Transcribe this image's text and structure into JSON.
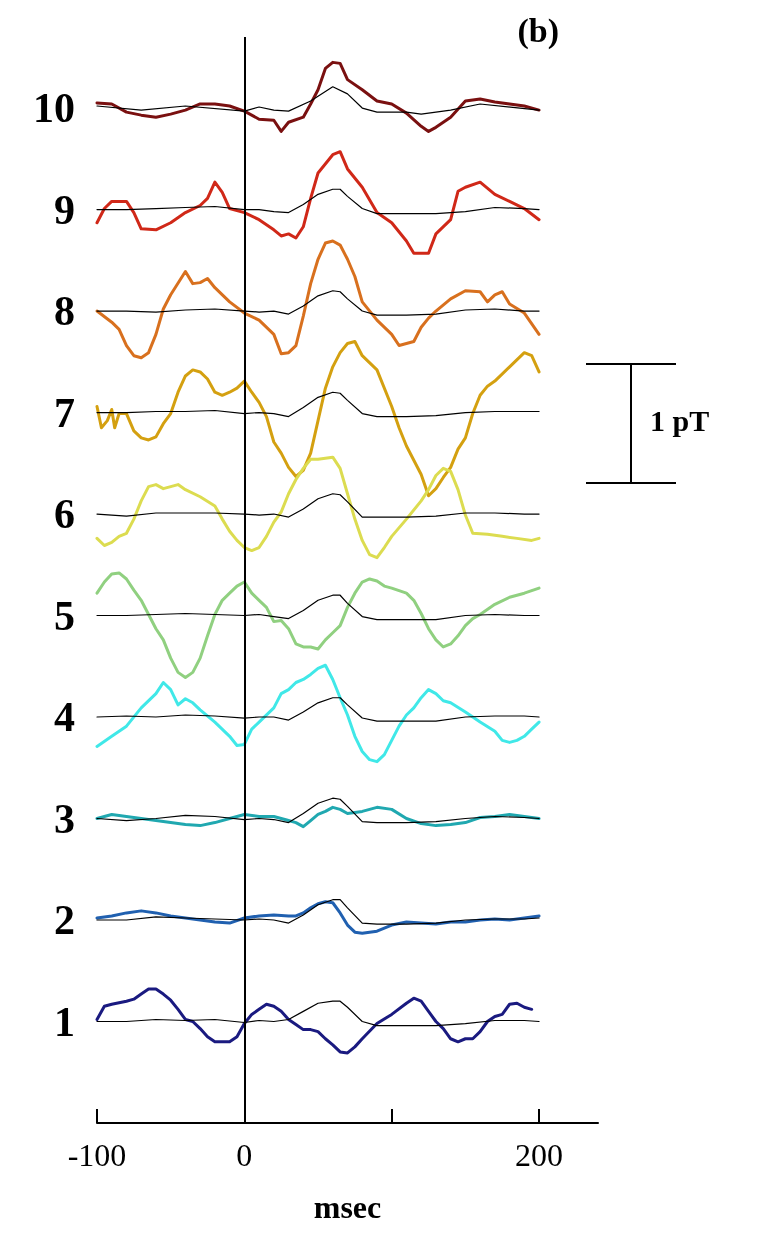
{
  "chart_data": {
    "type": "line",
    "title": "(b)",
    "xlabel": "msec",
    "xlim": [
      -100,
      240
    ],
    "xticks": [
      -100,
      0,
      {
        "value": 100,
        "label": null
      },
      200
    ],
    "ylim": [
      0,
      10.7
    ],
    "yticks": [
      1,
      2,
      3,
      4,
      5,
      6,
      7,
      8,
      9,
      10
    ],
    "marker": "none",
    "line_style": "solid",
    "ref_lines": [
      {
        "axis": "x",
        "value": 0,
        "color": "#000000"
      }
    ],
    "annotations": [
      "1 pT"
    ],
    "series": [
      {
        "color": "#7a1010",
        "x": [
          -100,
          -90,
          -80,
          -70,
          -60,
          -50,
          -40,
          -30,
          -20,
          -10,
          0,
          10,
          20,
          25,
          30,
          40,
          45,
          50,
          55,
          60,
          65,
          70,
          80,
          90,
          100,
          110,
          120,
          125,
          130,
          140,
          150,
          160,
          170,
          180,
          190,
          200
        ],
        "values": [
          10.05,
          10.04,
          9.96,
          9.93,
          9.91,
          9.94,
          9.98,
          10.04,
          10.04,
          10.02,
          9.97,
          9.89,
          9.88,
          9.77,
          9.86,
          9.91,
          10.04,
          10.18,
          10.39,
          10.45,
          10.44,
          10.28,
          10.18,
          10.07,
          10.04,
          9.95,
          9.82,
          9.77,
          9.81,
          9.91,
          10.07,
          10.09,
          10.06,
          10.04,
          10.02,
          9.98
        ]
      },
      {
        "color": "#000000",
        "x": [
          -100,
          -70,
          -40,
          0,
          10,
          20,
          30,
          45,
          60,
          70,
          80,
          90,
          110,
          120,
          140,
          160,
          200
        ],
        "values": [
          10.02,
          9.98,
          10.02,
          9.97,
          10.01,
          9.98,
          9.97,
          10.07,
          10.21,
          10.14,
          10.0,
          9.96,
          9.96,
          9.94,
          9.98,
          10.04,
          9.98
        ]
      },
      {
        "color": "#d02818",
        "x": [
          -100,
          -95,
          -90,
          -80,
          -75,
          -70,
          -60,
          -50,
          -40,
          -30,
          -25,
          -20,
          -15,
          -10,
          0,
          10,
          20,
          25,
          30,
          35,
          40,
          45,
          50,
          60,
          65,
          70,
          80,
          90,
          100,
          110,
          115,
          125,
          130,
          140,
          145,
          150,
          160,
          170,
          180,
          190,
          200
        ],
        "values": [
          8.87,
          9.01,
          9.08,
          9.08,
          8.97,
          8.81,
          8.8,
          8.87,
          8.97,
          9.04,
          9.11,
          9.27,
          9.17,
          9.01,
          8.97,
          8.9,
          8.8,
          8.74,
          8.76,
          8.72,
          8.83,
          9.11,
          9.36,
          9.54,
          9.57,
          9.4,
          9.22,
          8.97,
          8.87,
          8.69,
          8.57,
          8.57,
          8.76,
          8.9,
          9.18,
          9.22,
          9.27,
          9.15,
          9.08,
          9.01,
          8.9
        ]
      },
      {
        "color": "#000000",
        "x": [
          -100,
          -80,
          -60,
          -40,
          -20,
          0,
          10,
          20,
          30,
          40,
          50,
          60,
          65,
          70,
          80,
          90,
          110,
          130,
          150,
          170,
          190,
          200
        ],
        "values": [
          9.0,
          9.0,
          9.01,
          9.02,
          9.03,
          9.0,
          9.0,
          8.98,
          8.97,
          9.05,
          9.15,
          9.2,
          9.2,
          9.13,
          9.01,
          8.96,
          8.96,
          8.96,
          8.98,
          9.02,
          9.01,
          9.0
        ]
      },
      {
        "color": "#d8701e",
        "x": [
          -100,
          -90,
          -85,
          -80,
          -75,
          -70,
          -65,
          -60,
          -55,
          -50,
          -40,
          -35,
          -30,
          -25,
          -20,
          -10,
          0,
          10,
          20,
          25,
          30,
          35,
          40,
          45,
          50,
          55,
          60,
          65,
          70,
          75,
          80,
          90,
          100,
          105,
          110,
          115,
          120,
          125,
          130,
          140,
          150,
          160,
          165,
          170,
          175,
          180,
          190,
          200
        ],
        "values": [
          8.0,
          7.89,
          7.82,
          7.66,
          7.56,
          7.54,
          7.59,
          7.77,
          8.02,
          8.16,
          8.39,
          8.27,
          8.28,
          8.32,
          8.23,
          8.09,
          7.98,
          7.91,
          7.77,
          7.58,
          7.59,
          7.66,
          7.95,
          8.27,
          8.51,
          8.67,
          8.69,
          8.65,
          8.51,
          8.34,
          8.09,
          7.91,
          7.77,
          7.66,
          7.68,
          7.7,
          7.84,
          7.93,
          8.0,
          8.12,
          8.2,
          8.19,
          8.09,
          8.16,
          8.19,
          8.07,
          7.98,
          7.77
        ]
      },
      {
        "color": "#000000",
        "x": [
          -100,
          -80,
          -60,
          -40,
          -20,
          0,
          10,
          20,
          30,
          40,
          50,
          60,
          65,
          70,
          80,
          90,
          110,
          130,
          150,
          170,
          190,
          200
        ],
        "values": [
          8.0,
          8.0,
          7.99,
          8.01,
          8.02,
          8.0,
          7.99,
          8.0,
          7.97,
          8.05,
          8.15,
          8.2,
          8.19,
          8.12,
          8.0,
          7.96,
          7.96,
          7.97,
          8.01,
          8.02,
          8.0,
          8.0
        ]
      },
      {
        "color": "#d4a010",
        "x": [
          -100,
          -97,
          -93,
          -90,
          -88,
          -85,
          -80,
          -75,
          -70,
          -65,
          -60,
          -55,
          -50,
          -45,
          -40,
          -35,
          -30,
          -25,
          -20,
          -15,
          -10,
          -5,
          0,
          5,
          10,
          15,
          20,
          25,
          30,
          35,
          40,
          45,
          50,
          55,
          60,
          65,
          70,
          75,
          80,
          90,
          100,
          105,
          110,
          120,
          125,
          130,
          135,
          140,
          145,
          150,
          155,
          160,
          165,
          170,
          180,
          190,
          195,
          200
        ],
        "values": [
          7.06,
          6.85,
          6.92,
          7.03,
          6.85,
          6.99,
          6.99,
          6.82,
          6.75,
          6.73,
          6.76,
          6.89,
          6.99,
          7.2,
          7.36,
          7.42,
          7.4,
          7.33,
          7.2,
          7.17,
          7.2,
          7.24,
          7.31,
          7.2,
          7.1,
          6.96,
          6.71,
          6.6,
          6.46,
          6.37,
          6.43,
          6.6,
          6.92,
          7.24,
          7.45,
          7.59,
          7.68,
          7.7,
          7.56,
          7.42,
          7.06,
          6.85,
          6.67,
          6.39,
          6.18,
          6.25,
          6.36,
          6.46,
          6.64,
          6.75,
          6.99,
          7.17,
          7.26,
          7.31,
          7.45,
          7.59,
          7.56,
          7.4
        ]
      },
      {
        "color": "#000000",
        "x": [
          -100,
          -80,
          -60,
          -40,
          -20,
          0,
          10,
          20,
          30,
          40,
          50,
          60,
          65,
          70,
          80,
          90,
          110,
          130,
          150,
          170,
          190,
          200
        ],
        "values": [
          7.0,
          7.0,
          7.01,
          7.01,
          7.02,
          6.99,
          7.0,
          6.99,
          6.96,
          7.05,
          7.15,
          7.2,
          7.19,
          7.12,
          6.99,
          6.96,
          6.96,
          6.97,
          7.0,
          7.01,
          7.01,
          7.01
        ]
      },
      {
        "color": "#dcdc50",
        "x": [
          -100,
          -95,
          -90,
          -85,
          -80,
          -75,
          -70,
          -65,
          -60,
          -55,
          -50,
          -45,
          -40,
          -30,
          -20,
          -15,
          -10,
          -5,
          0,
          5,
          10,
          15,
          20,
          25,
          30,
          35,
          40,
          45,
          50,
          55,
          60,
          65,
          70,
          75,
          80,
          85,
          90,
          95,
          100,
          110,
          120,
          125,
          130,
          135,
          140,
          145,
          150,
          155,
          165,
          175,
          185,
          195,
          200
        ],
        "values": [
          5.76,
          5.69,
          5.72,
          5.78,
          5.81,
          5.95,
          6.13,
          6.27,
          6.29,
          6.25,
          6.27,
          6.29,
          6.24,
          6.17,
          6.08,
          5.95,
          5.83,
          5.74,
          5.67,
          5.64,
          5.67,
          5.78,
          5.92,
          6.02,
          6.2,
          6.34,
          6.45,
          6.54,
          6.54,
          6.55,
          6.56,
          6.45,
          6.2,
          5.95,
          5.74,
          5.6,
          5.57,
          5.67,
          5.78,
          5.95,
          6.13,
          6.24,
          6.38,
          6.45,
          6.42,
          6.24,
          5.99,
          5.81,
          5.8,
          5.78,
          5.76,
          5.74,
          5.76
        ]
      },
      {
        "color": "#000000",
        "x": [
          -100,
          -80,
          -60,
          -40,
          -20,
          0,
          10,
          20,
          30,
          40,
          50,
          60,
          65,
          70,
          80,
          90,
          110,
          130,
          150,
          170,
          190,
          200
        ],
        "values": [
          6.0,
          5.98,
          6.01,
          6.01,
          6.01,
          6.0,
          5.99,
          6.0,
          5.97,
          6.05,
          6.15,
          6.2,
          6.19,
          6.12,
          5.97,
          5.97,
          5.97,
          5.98,
          6.01,
          6.01,
          6.0,
          6.0
        ]
      },
      {
        "color": "#90d080",
        "x": [
          -100,
          -95,
          -90,
          -85,
          -80,
          -75,
          -70,
          -65,
          -60,
          -55,
          -50,
          -45,
          -40,
          -35,
          -30,
          -25,
          -20,
          -15,
          -10,
          -5,
          0,
          5,
          10,
          15,
          20,
          25,
          30,
          35,
          40,
          45,
          50,
          55,
          60,
          65,
          70,
          75,
          80,
          85,
          90,
          95,
          100,
          110,
          115,
          120,
          125,
          130,
          135,
          140,
          145,
          150,
          155,
          160,
          170,
          180,
          190,
          200
        ],
        "values": [
          5.22,
          5.33,
          5.41,
          5.42,
          5.36,
          5.25,
          5.15,
          5.01,
          4.87,
          4.76,
          4.58,
          4.44,
          4.39,
          4.44,
          4.58,
          4.8,
          5.01,
          5.15,
          5.22,
          5.29,
          5.33,
          5.22,
          5.15,
          5.08,
          4.94,
          4.95,
          4.87,
          4.72,
          4.69,
          4.69,
          4.67,
          4.76,
          4.83,
          4.9,
          5.08,
          5.22,
          5.33,
          5.36,
          5.34,
          5.29,
          5.27,
          5.22,
          5.15,
          5.02,
          4.87,
          4.76,
          4.69,
          4.72,
          4.8,
          4.9,
          4.97,
          5.01,
          5.11,
          5.18,
          5.22,
          5.27
        ]
      },
      {
        "color": "#000000",
        "x": [
          -100,
          -80,
          -60,
          -40,
          -20,
          0,
          10,
          20,
          30,
          40,
          50,
          60,
          65,
          70,
          80,
          90,
          110,
          130,
          150,
          170,
          190,
          200
        ],
        "values": [
          5.0,
          5.0,
          5.01,
          5.02,
          5.01,
          5.0,
          5.01,
          4.99,
          4.97,
          5.05,
          5.15,
          5.2,
          5.2,
          5.12,
          4.99,
          4.96,
          4.96,
          4.96,
          5.0,
          5.01,
          5.0,
          5.0
        ]
      },
      {
        "color": "#40e8e8",
        "x": [
          -100,
          -90,
          -80,
          -70,
          -60,
          -55,
          -50,
          -45,
          -40,
          -35,
          -30,
          -20,
          -10,
          -5,
          0,
          5,
          10,
          20,
          25,
          30,
          35,
          40,
          45,
          50,
          55,
          60,
          65,
          70,
          75,
          80,
          85,
          90,
          95,
          100,
          105,
          110,
          115,
          120,
          125,
          130,
          135,
          140,
          150,
          160,
          170,
          175,
          180,
          185,
          190,
          195,
          200
        ],
        "values": [
          3.71,
          3.81,
          3.91,
          4.09,
          4.23,
          4.34,
          4.27,
          4.12,
          4.18,
          4.14,
          4.07,
          3.95,
          3.81,
          3.72,
          3.73,
          3.88,
          3.95,
          4.09,
          4.23,
          4.27,
          4.34,
          4.37,
          4.42,
          4.48,
          4.51,
          4.37,
          4.19,
          4.02,
          3.81,
          3.66,
          3.58,
          3.56,
          3.63,
          3.77,
          3.91,
          4.02,
          4.09,
          4.19,
          4.27,
          4.23,
          4.16,
          4.14,
          4.05,
          3.95,
          3.86,
          3.77,
          3.75,
          3.77,
          3.81,
          3.88,
          3.95
        ]
      },
      {
        "color": "#000000",
        "x": [
          -100,
          -80,
          -60,
          -40,
          -20,
          0,
          10,
          20,
          30,
          40,
          50,
          60,
          65,
          70,
          80,
          90,
          110,
          130,
          150,
          170,
          190,
          200
        ],
        "values": [
          4.0,
          4.01,
          4.0,
          4.02,
          4.01,
          3.99,
          4.0,
          4.0,
          3.97,
          4.05,
          4.14,
          4.19,
          4.19,
          4.12,
          3.99,
          3.96,
          3.96,
          3.96,
          4.0,
          4.01,
          4.01,
          4.0
        ]
      },
      {
        "color": "#20a8b0",
        "x": [
          -100,
          -90,
          -80,
          -70,
          -60,
          -50,
          -40,
          -30,
          -20,
          -10,
          0,
          10,
          20,
          30,
          35,
          40,
          45,
          50,
          55,
          60,
          65,
          70,
          80,
          90,
          100,
          110,
          120,
          130,
          140,
          150,
          160,
          170,
          180,
          190,
          200
        ],
        "values": [
          3.0,
          3.04,
          3.02,
          3.0,
          2.98,
          2.96,
          2.94,
          2.93,
          2.96,
          3.0,
          3.04,
          3.02,
          3.02,
          2.98,
          2.96,
          2.92,
          2.98,
          3.04,
          3.07,
          3.11,
          3.09,
          3.05,
          3.07,
          3.11,
          3.09,
          3.0,
          2.95,
          2.93,
          2.94,
          2.96,
          3.01,
          3.02,
          3.04,
          3.02,
          3.0
        ]
      },
      {
        "color": "#000000",
        "x": [
          -100,
          -80,
          -60,
          -40,
          -20,
          0,
          10,
          20,
          30,
          40,
          50,
          60,
          65,
          70,
          80,
          90,
          110,
          130,
          150,
          170,
          190,
          200
        ],
        "values": [
          3.0,
          2.98,
          3.0,
          3.03,
          3.02,
          2.99,
          3.0,
          2.99,
          2.96,
          3.05,
          3.15,
          3.2,
          3.19,
          3.12,
          2.97,
          2.96,
          2.96,
          2.97,
          3.0,
          3.02,
          3.01,
          3.0
        ]
      },
      {
        "color": "#2060b0",
        "x": [
          -100,
          -90,
          -80,
          -70,
          -60,
          -50,
          -40,
          -30,
          -20,
          -10,
          0,
          10,
          20,
          30,
          35,
          40,
          45,
          50,
          55,
          60,
          65,
          70,
          75,
          80,
          90,
          100,
          110,
          120,
          130,
          140,
          150,
          160,
          170,
          180,
          190,
          200
        ],
        "values": [
          2.02,
          2.04,
          2.07,
          2.09,
          2.07,
          2.04,
          2.02,
          2.0,
          1.98,
          1.97,
          2.02,
          2.04,
          2.05,
          2.04,
          2.04,
          2.07,
          2.12,
          2.16,
          2.18,
          2.17,
          2.07,
          1.95,
          1.88,
          1.87,
          1.89,
          1.95,
          1.98,
          1.97,
          1.96,
          1.98,
          1.98,
          2.0,
          2.01,
          2.0,
          2.02,
          2.04
        ]
      },
      {
        "color": "#000000",
        "x": [
          -100,
          -80,
          -60,
          -40,
          -20,
          0,
          10,
          20,
          30,
          40,
          50,
          60,
          65,
          70,
          80,
          90,
          110,
          130,
          150,
          170,
          190,
          200
        ],
        "values": [
          2.0,
          2.0,
          2.03,
          2.02,
          2.01,
          2.0,
          2.01,
          2.0,
          1.97,
          2.05,
          2.15,
          2.2,
          2.2,
          2.12,
          1.97,
          1.96,
          1.96,
          1.97,
          2.0,
          2.01,
          2.01,
          2.02
        ]
      },
      {
        "color": "#1a1a80",
        "x": [
          -100,
          -95,
          -90,
          -80,
          -75,
          -70,
          -65,
          -60,
          -55,
          -50,
          -45,
          -40,
          -35,
          -30,
          -25,
          -20,
          -15,
          -10,
          -5,
          0,
          5,
          10,
          15,
          20,
          25,
          30,
          35,
          40,
          45,
          50,
          55,
          60,
          65,
          70,
          75,
          80,
          90,
          100,
          110,
          115,
          120,
          125,
          130,
          135,
          140,
          145,
          150,
          155,
          160,
          165,
          170,
          175,
          180,
          185,
          190,
          195
        ],
        "values": [
          1.02,
          1.15,
          1.17,
          1.2,
          1.22,
          1.27,
          1.32,
          1.32,
          1.27,
          1.21,
          1.12,
          1.02,
          1.0,
          0.93,
          0.85,
          0.8,
          0.8,
          0.8,
          0.85,
          0.98,
          1.07,
          1.12,
          1.17,
          1.15,
          1.1,
          1.02,
          0.97,
          0.92,
          0.92,
          0.9,
          0.83,
          0.77,
          0.7,
          0.69,
          0.75,
          0.83,
          0.98,
          1.07,
          1.18,
          1.23,
          1.2,
          1.1,
          1.0,
          0.93,
          0.83,
          0.8,
          0.83,
          0.83,
          0.9,
          1.0,
          1.05,
          1.07,
          1.17,
          1.18,
          1.14,
          1.12
        ]
      },
      {
        "color": "#000000",
        "x": [
          -100,
          -80,
          -60,
          -40,
          -20,
          0,
          10,
          20,
          30,
          40,
          50,
          60,
          65,
          70,
          80,
          90,
          110,
          130,
          150,
          170,
          190,
          200
        ],
        "values": [
          1.0,
          1.0,
          1.02,
          1.01,
          1.02,
          0.99,
          1.01,
          1.0,
          1.02,
          1.1,
          1.18,
          1.2,
          1.2,
          1.14,
          1.0,
          0.96,
          0.96,
          0.96,
          0.98,
          1.01,
          1.01,
          1.0
        ]
      }
    ]
  }
}
